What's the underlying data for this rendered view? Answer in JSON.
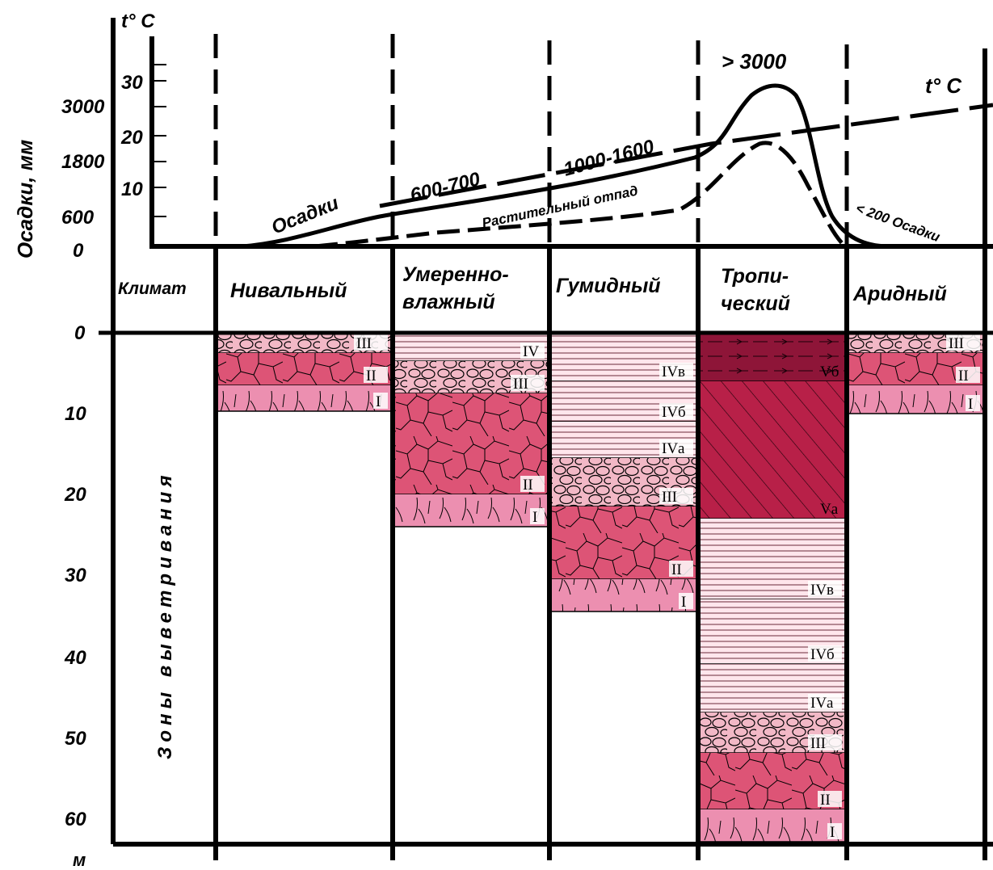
{
  "top_chart": {
    "temp_axis_label": "t° C",
    "precip_axis_label": "Осадки, мм",
    "temp_ticks": [
      "10",
      "20",
      "30"
    ],
    "precip_ticks": [
      "0",
      "600",
      "1800",
      "3000"
    ],
    "annotations": {
      "over_3000": "> 3000",
      "t_curve": "t° C",
      "osadki": "Осадки",
      "r600_700": "600-700",
      "r1000_1600": "1000-1600",
      "litter": "Растительный отпад",
      "arid_precip": "< 200 Осадки"
    }
  },
  "climate_row": {
    "header": "Климат",
    "zones": [
      {
        "line1": "Нивальный",
        "line2": ""
      },
      {
        "line1": "Умеренно-",
        "line2": "влажный"
      },
      {
        "line1": "Гумидный",
        "line2": ""
      },
      {
        "line1": "Тропи-",
        "line2": "ческий"
      },
      {
        "line1": "Аридный",
        "line2": ""
      }
    ]
  },
  "depth_axis": {
    "title": "Зоны выветривания",
    "ticks": [
      "0",
      "10",
      "20",
      "30",
      "40",
      "50",
      "60"
    ],
    "unit": "м"
  },
  "profiles": [
    {
      "zone": "Нивальный",
      "layers": [
        {
          "label": "III",
          "top": 0,
          "bottom": 2.5,
          "kind": "pebble"
        },
        {
          "label": "II",
          "top": 2.5,
          "bottom": 6.5,
          "kind": "crack"
        },
        {
          "label": "I",
          "top": 6.5,
          "bottom": 9.7,
          "kind": "root"
        }
      ]
    },
    {
      "zone": "Умеренно-влажный",
      "layers": [
        {
          "label": "IV",
          "top": 0,
          "bottom": 3.5,
          "kind": "line"
        },
        {
          "label": "III",
          "top": 3.5,
          "bottom": 7.5,
          "kind": "pebble"
        },
        {
          "label": "II",
          "top": 7.5,
          "bottom": 20,
          "kind": "crack"
        },
        {
          "label": "I",
          "top": 20,
          "bottom": 24,
          "kind": "root"
        }
      ]
    },
    {
      "zone": "Гумидный",
      "layers": [
        {
          "label": "IVв",
          "top": 0,
          "bottom": 6,
          "kind": "line"
        },
        {
          "label": "IVб",
          "top": 6,
          "bottom": 11,
          "kind": "line"
        },
        {
          "label": "IVа",
          "top": 11,
          "bottom": 15.5,
          "kind": "line"
        },
        {
          "label": "III",
          "top": 15.5,
          "bottom": 21.5,
          "kind": "pebble"
        },
        {
          "label": "II",
          "top": 21.5,
          "bottom": 30.5,
          "kind": "crack"
        },
        {
          "label": "I",
          "top": 30.5,
          "bottom": 34.5,
          "kind": "root"
        }
      ]
    },
    {
      "zone": "Тропический",
      "layers": [
        {
          "label": "Vб",
          "top": 0,
          "bottom": 6,
          "kind": "dark"
        },
        {
          "label": "Vа",
          "top": 6,
          "bottom": 23,
          "kind": "hatch"
        },
        {
          "label": "IVв",
          "top": 23,
          "bottom": 33,
          "kind": "line"
        },
        {
          "label": "IVб",
          "top": 33,
          "bottom": 41,
          "kind": "line"
        },
        {
          "label": "IVа",
          "top": 41,
          "bottom": 47,
          "kind": "line"
        },
        {
          "label": "III",
          "top": 47,
          "bottom": 52,
          "kind": "pebble"
        },
        {
          "label": "II",
          "top": 52,
          "bottom": 59,
          "kind": "crack"
        },
        {
          "label": "I",
          "top": 59,
          "bottom": 63,
          "kind": "root"
        }
      ]
    },
    {
      "zone": "Аридный",
      "layers": [
        {
          "label": "III",
          "top": 0,
          "bottom": 2.5,
          "kind": "pebble"
        },
        {
          "label": "II",
          "top": 2.5,
          "bottom": 6.5,
          "kind": "crack"
        },
        {
          "label": "I",
          "top": 6.5,
          "bottom": 10,
          "kind": "root"
        }
      ]
    }
  ],
  "colors": {
    "line": "#ffe6ec",
    "pebble": "#f2b8c6",
    "crack": "#dd5476",
    "root": "#ec8fb0",
    "hatch": "#b82048",
    "dark": "#8e1538"
  }
}
